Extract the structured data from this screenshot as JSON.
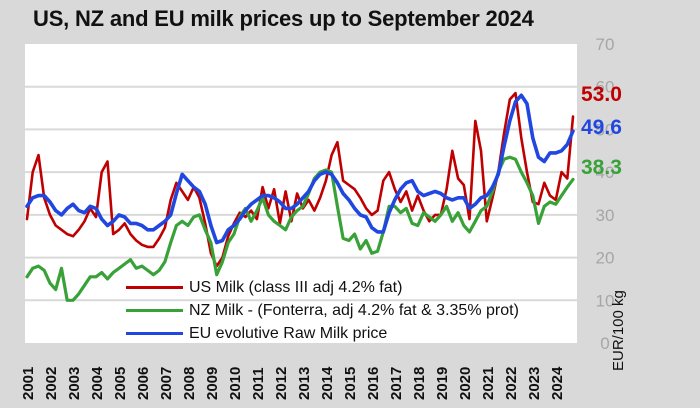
{
  "title": "US, NZ and EU milk prices up to September 2024",
  "y_axis_title": "EUR/100 kg",
  "chart_data": {
    "type": "line",
    "title": "US, NZ and EU milk prices up to September 2024",
    "xlabel": "",
    "ylabel": "EUR/100 kg",
    "ylim": [
      0,
      70
    ],
    "y_ticks": [
      0,
      10,
      20,
      30,
      40,
      50,
      60,
      70
    ],
    "x_labels": [
      "2001",
      "2002",
      "2003",
      "2004",
      "2005",
      "2006",
      "2007",
      "2008",
      "2009",
      "2010",
      "2011",
      "2012",
      "2013",
      "2014",
      "2015",
      "2016",
      "2017",
      "2018",
      "2019",
      "2020",
      "2021",
      "2022",
      "2023",
      "2024"
    ],
    "x_start": 2001.0,
    "x_step_years": 0.25,
    "x_end": "September 2024",
    "grid": "horizontal",
    "legend_position": "inside-bottom-left",
    "series": [
      {
        "name": "US Milk (class III adj 4.2% fat)",
        "color": "#c00000",
        "end_label": "53.0",
        "values": [
          29,
          40,
          44,
          34,
          30,
          27.5,
          26.5,
          25.5,
          25,
          26.5,
          28.5,
          31.5,
          29.5,
          40,
          42.5,
          25.5,
          26.5,
          28,
          25.5,
          24,
          23,
          22.5,
          22.5,
          24.5,
          27,
          33.5,
          37.5,
          35.5,
          33.5,
          36.5,
          34,
          28,
          21,
          18,
          20,
          25,
          28,
          30.5,
          29.5,
          31,
          29,
          36.5,
          31.5,
          36,
          28,
          35.5,
          28.5,
          35,
          31.5,
          33.5,
          31,
          34,
          38,
          44,
          47,
          38,
          37,
          36,
          34,
          31.5,
          30,
          31,
          38,
          40,
          36,
          33,
          35.5,
          31,
          34.5,
          31,
          28.5,
          30,
          30,
          36,
          45,
          38.5,
          37,
          29,
          52,
          45,
          28.5,
          34,
          40,
          49,
          57,
          58.5,
          48,
          40,
          33,
          32.5,
          37.5,
          34.5,
          33.5,
          40,
          38.5,
          53
        ]
      },
      {
        "name": "NZ Milk - (Fonterra, adj 4.2% fat & 3.35% prot)",
        "color": "#38a238",
        "end_label": "38.3",
        "values": [
          15.5,
          17.5,
          18,
          17,
          14,
          12.5,
          17.5,
          10,
          10,
          11.5,
          13.5,
          15.5,
          15.5,
          16.5,
          15,
          16.5,
          17.5,
          18.5,
          19.5,
          17.5,
          18,
          17,
          16,
          17,
          19,
          23.5,
          27.5,
          28.5,
          27.5,
          29.5,
          30,
          26.5,
          23.5,
          16,
          19,
          23.5,
          25.5,
          29.5,
          31.5,
          28.5,
          31,
          34,
          30,
          28.5,
          27.5,
          26.5,
          29.5,
          31,
          32,
          35,
          38.5,
          40,
          40.5,
          40,
          32,
          24.5,
          24,
          25.5,
          22,
          24,
          21,
          21.5,
          26,
          32,
          32,
          30.5,
          31.5,
          28,
          27.5,
          30.5,
          29.5,
          28.5,
          30,
          32,
          28.5,
          30.5,
          27.5,
          26,
          28.5,
          31,
          32,
          35.5,
          40,
          43,
          43.5,
          43,
          40,
          37.5,
          34.5,
          28,
          32,
          33,
          32.5,
          34.5,
          36.5,
          38.3
        ]
      },
      {
        "name": "EU evolutive Raw Milk price",
        "color": "#2047e0",
        "end_label": "49.6",
        "values": [
          32,
          34,
          34.5,
          34.5,
          33,
          31,
          30,
          31.5,
          32.5,
          31,
          30.5,
          32,
          31.5,
          29,
          27.5,
          28.5,
          30,
          29.5,
          28,
          28,
          27.5,
          26.5,
          26.5,
          27.5,
          28.5,
          30,
          35,
          39.5,
          38,
          36.5,
          35.5,
          32.5,
          27.5,
          23.5,
          24,
          26.5,
          27.5,
          29,
          31,
          32.5,
          33.5,
          34.5,
          34.5,
          34,
          33,
          31.5,
          31.5,
          32.5,
          34,
          35.5,
          38,
          39.5,
          40,
          39.5,
          37.5,
          35,
          33.5,
          31.5,
          30,
          29.5,
          27,
          26,
          26,
          30.5,
          33.5,
          36,
          37.5,
          38,
          35.5,
          34.5,
          35,
          35.5,
          35,
          34,
          33.5,
          34,
          34,
          31.5,
          32.5,
          34,
          34.5,
          36.5,
          39.5,
          46,
          52,
          56.5,
          58,
          56,
          48,
          43.5,
          42.5,
          44.5,
          44.5,
          45,
          46.5,
          49.6
        ]
      }
    ],
    "colors": {
      "background": "#d9d9d9",
      "plot_background": "#ffffff",
      "gridline": "#d9d9d9",
      "tick_label": "#a6a6a6",
      "text": "#111111"
    }
  }
}
